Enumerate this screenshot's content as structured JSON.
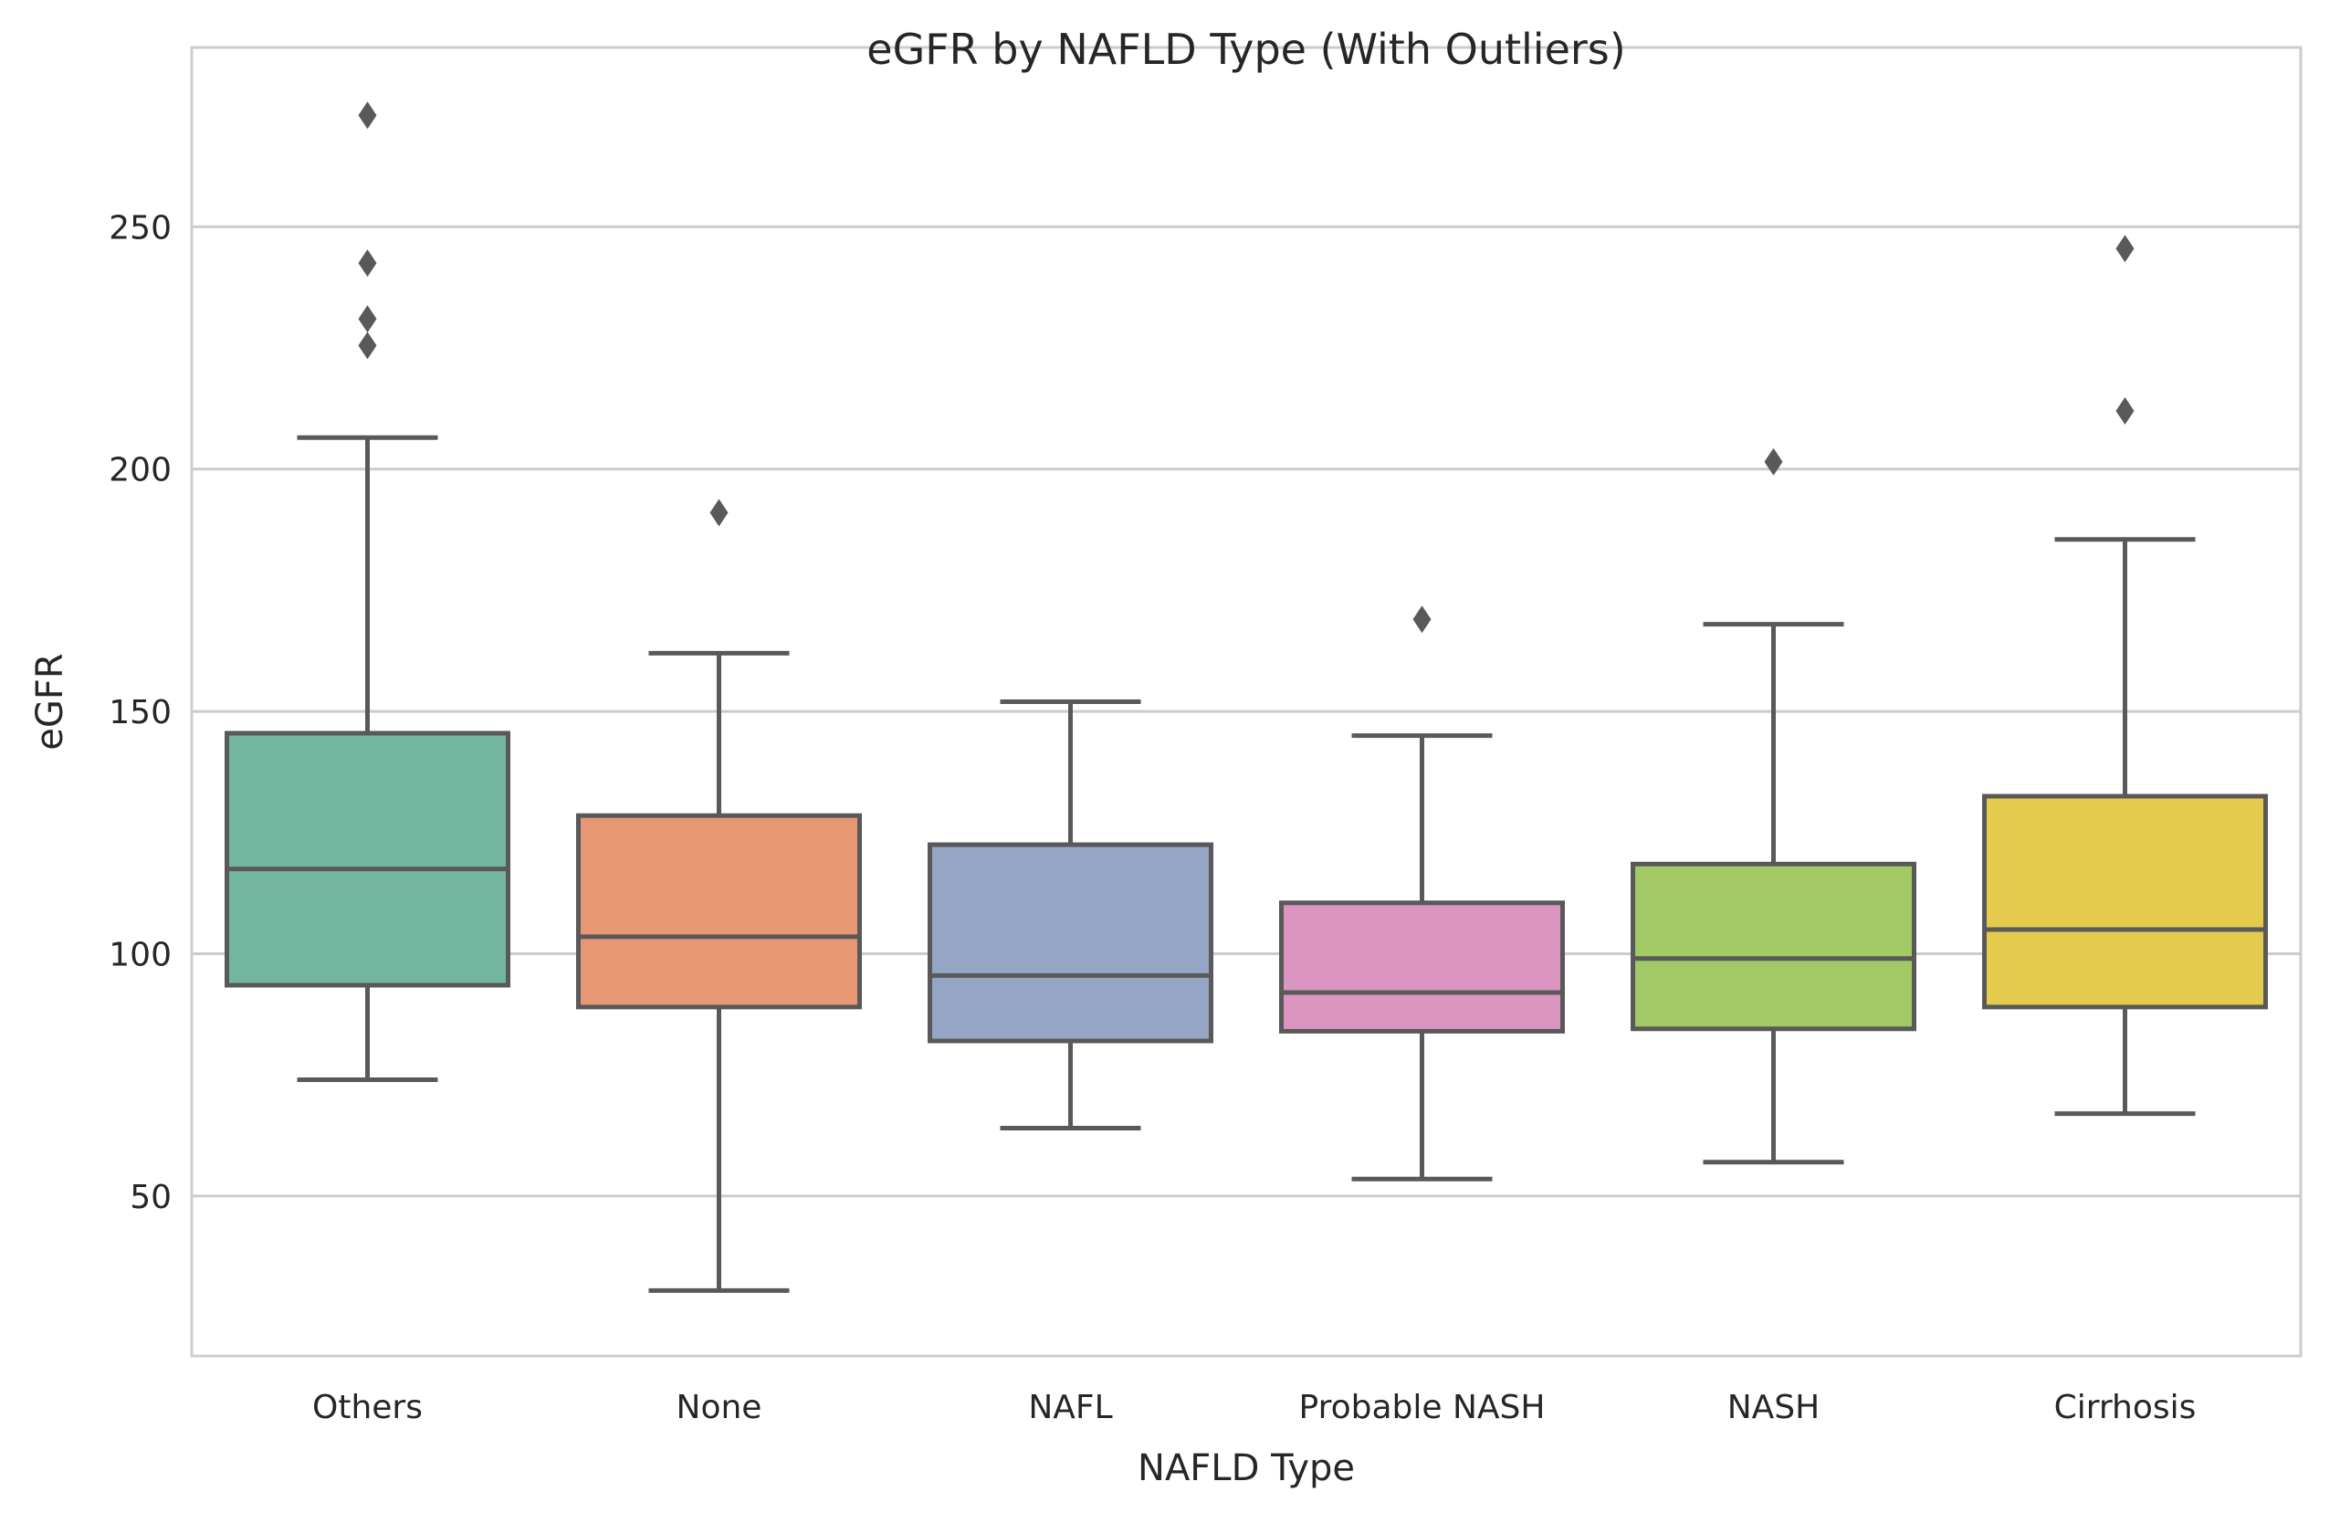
{
  "chart_data": {
    "type": "box",
    "title": "eGFR by NAFLD Type (With Outliers)",
    "xlabel": "NAFLD Type",
    "ylabel": "eGFR",
    "ylim": [
      17,
      287
    ],
    "yticks": [
      50,
      100,
      150,
      200,
      250
    ],
    "grid": "horizontal",
    "categories": [
      "Others",
      "None",
      "NAFL",
      "Probable NASH",
      "NASH",
      "Cirrhosis"
    ],
    "boxes": [
      {
        "category": "Others",
        "whisker_low": 74,
        "q1": 93.5,
        "median": 117.5,
        "q3": 145.5,
        "whisker_high": 206.5,
        "outliers": [
          225.5,
          231,
          242.5,
          273
        ],
        "color": "#73b6a0"
      },
      {
        "category": "None",
        "whisker_low": 30.5,
        "q1": 89,
        "median": 103.5,
        "q3": 128.5,
        "whisker_high": 162,
        "outliers": [
          191
        ],
        "color": "#e89775"
      },
      {
        "category": "NAFL",
        "whisker_low": 64,
        "q1": 82,
        "median": 95.5,
        "q3": 122.5,
        "whisker_high": 152,
        "outliers": [],
        "color": "#95a5c5"
      },
      {
        "category": "Probable NASH",
        "whisker_low": 53.5,
        "q1": 84,
        "median": 92,
        "q3": 110.5,
        "whisker_high": 145,
        "outliers": [
          169
        ],
        "color": "#da96c1"
      },
      {
        "category": "NASH",
        "whisker_low": 57,
        "q1": 84.5,
        "median": 99,
        "q3": 118.5,
        "whisker_high": 168,
        "outliers": [
          201.5
        ],
        "color": "#a1c966"
      },
      {
        "category": "Cirrhosis",
        "whisker_low": 67,
        "q1": 89,
        "median": 105,
        "q3": 132.5,
        "whisker_high": 185.5,
        "outliers": [
          212,
          245.5
        ],
        "color": "#e4cb4d"
      }
    ]
  }
}
